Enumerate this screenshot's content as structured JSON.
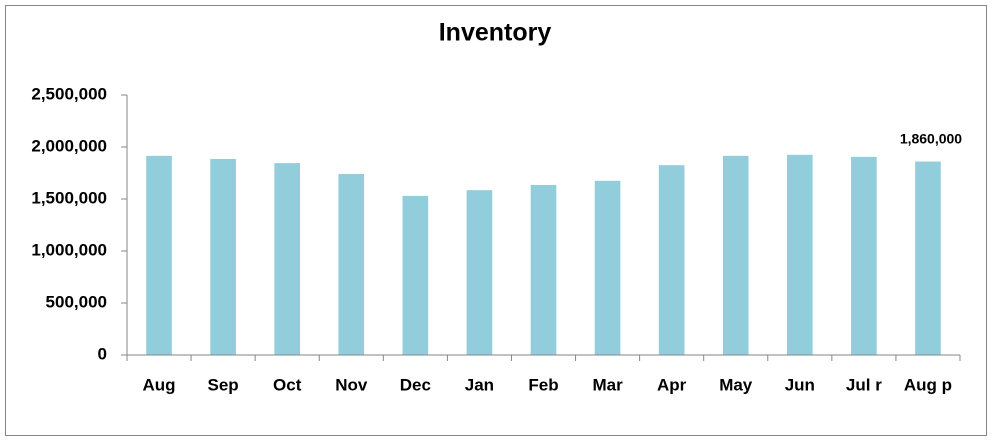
{
  "chart_data": {
    "type": "bar",
    "title": "Inventory",
    "categories": [
      "Aug",
      "Sep",
      "Oct",
      "Nov",
      "Dec",
      "Jan",
      "Feb",
      "Mar",
      "Apr",
      "May",
      "Jun",
      "Jul r",
      "Aug p"
    ],
    "values": [
      1915000,
      1885000,
      1845000,
      1740000,
      1530000,
      1585000,
      1635000,
      1675000,
      1825000,
      1915000,
      1925000,
      1905000,
      1860000
    ],
    "value_labels": [
      null,
      null,
      null,
      null,
      null,
      null,
      null,
      null,
      null,
      null,
      null,
      null,
      "1,860,000"
    ],
    "color": "#92cddc",
    "ylim": [
      0,
      2500000
    ],
    "yticks": [
      0,
      {
        "value": 500000,
        "label": "500,000"
      },
      {
        "value": 1000000,
        "label": "1,000,000"
      },
      {
        "value": 1500000,
        "label": "1,500,000"
      },
      {
        "value": 2000000,
        "label": "2,000,000"
      },
      {
        "value": 2500000,
        "label": "2,500,000"
      }
    ],
    "grid": false
  }
}
